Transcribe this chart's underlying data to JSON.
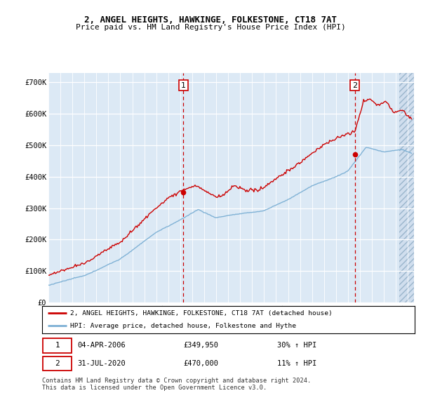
{
  "title": "2, ANGEL HEIGHTS, HAWKINGE, FOLKESTONE, CT18 7AT",
  "subtitle": "Price paid vs. HM Land Registry's House Price Index (HPI)",
  "ylabel_ticks": [
    "£0",
    "£100K",
    "£200K",
    "£300K",
    "£400K",
    "£500K",
    "£600K",
    "£700K"
  ],
  "ytick_values": [
    0,
    100000,
    200000,
    300000,
    400000,
    500000,
    600000,
    700000
  ],
  "ylim": [
    0,
    730000
  ],
  "xlim_start": 1995.0,
  "xlim_end": 2025.5,
  "sale1": {
    "date_x": 2006.27,
    "price": 349950,
    "label": "1",
    "date_str": "04-APR-2006",
    "hpi_pct": "30% ↑ HPI"
  },
  "sale2": {
    "date_x": 2020.58,
    "price": 470000,
    "label": "2",
    "date_str": "31-JUL-2020",
    "hpi_pct": "11% ↑ HPI"
  },
  "legend_line1": "2, ANGEL HEIGHTS, HAWKINGE, FOLKESTONE, CT18 7AT (detached house)",
  "legend_line2": "HPI: Average price, detached house, Folkestone and Hythe",
  "footer1": "Contains HM Land Registry data © Crown copyright and database right 2024.",
  "footer2": "This data is licensed under the Open Government Licence v3.0.",
  "background_color": "#dce9f5",
  "grid_color": "#ffffff",
  "red_line_color": "#cc0000",
  "blue_line_color": "#7bafd4",
  "sale_marker_color": "#cc0000",
  "box_edge_color": "#cc0000",
  "hatch_start": 2024.3
}
